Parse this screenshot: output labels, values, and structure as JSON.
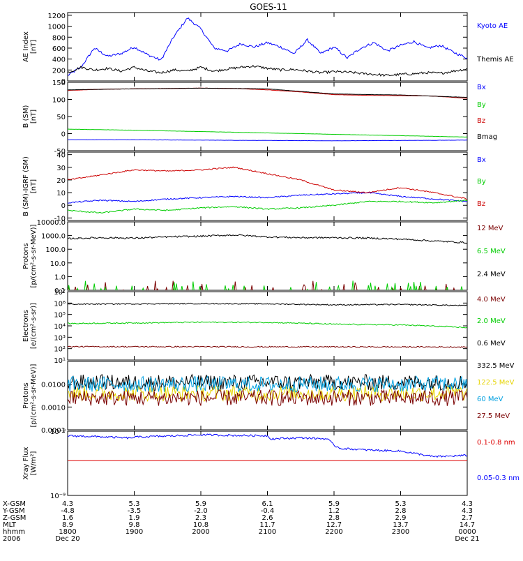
{
  "title": "GOES-11",
  "colors": {
    "black": "#000000",
    "blue": "#0000ff",
    "green": "#00cc00",
    "red": "#cc0000",
    "darkred": "#7a0000",
    "yellow": "#e6d400",
    "cyan": "#00a0e0",
    "xrayRed": "#dd0000"
  },
  "chart_data": [
    {
      "type": "line",
      "id": "ae",
      "ylabel": "AE Index\n[nT]",
      "ylim": [
        0,
        1250
      ],
      "yticks": [
        "0",
        "200",
        "400",
        "600",
        "800",
        "1000",
        "1200"
      ],
      "series": [
        {
          "name": "Kyoto AE",
          "color": "blue",
          "x": [
            0,
            0.2,
            0.4,
            0.6,
            0.8,
            1.0,
            1.2,
            1.4,
            1.6,
            1.8,
            2.0,
            2.2,
            2.4,
            2.6,
            2.8,
            3.0,
            3.2,
            3.4,
            3.6,
            3.8,
            4.0,
            4.2,
            4.4,
            4.6,
            4.8,
            5.0,
            5.2,
            5.4,
            5.6,
            5.8,
            6.0
          ],
          "values": [
            100,
            250,
            600,
            450,
            500,
            620,
            480,
            380,
            820,
            1150,
            950,
            600,
            550,
            680,
            620,
            700,
            620,
            500,
            750,
            500,
            620,
            420,
            600,
            700,
            550,
            650,
            720,
            600,
            650,
            520,
            420
          ]
        },
        {
          "name": "Themis AE",
          "color": "black",
          "x": [
            0,
            0.2,
            0.4,
            0.6,
            0.8,
            1.0,
            1.2,
            1.4,
            1.6,
            1.8,
            2.0,
            2.2,
            2.4,
            2.6,
            2.8,
            3.0,
            3.2,
            3.4,
            3.6,
            3.8,
            4.0,
            4.2,
            4.4,
            4.6,
            4.8,
            5.0,
            5.2,
            5.4,
            5.6,
            5.8,
            6.0
          ],
          "values": [
            150,
            250,
            200,
            230,
            180,
            250,
            180,
            150,
            200,
            180,
            250,
            180,
            220,
            250,
            270,
            230,
            200,
            210,
            180,
            150,
            170,
            160,
            140,
            120,
            100,
            120,
            130,
            150,
            140,
            180,
            220
          ]
        }
      ]
    },
    {
      "type": "line",
      "id": "bsm",
      "ylabel": "B (SM)\n[nT]",
      "ylim": [
        -50,
        150
      ],
      "yticks": [
        "-50",
        "0",
        "50",
        "100",
        "150"
      ],
      "series": [
        {
          "name": "Bx",
          "color": "blue",
          "x": [
            0,
            1,
            2,
            3,
            4,
            5,
            6
          ],
          "values": [
            -18,
            -18,
            -19,
            -20,
            -21,
            -20,
            -19
          ]
        },
        {
          "name": "By",
          "color": "green",
          "x": [
            0,
            1,
            2,
            3,
            4,
            5,
            6
          ],
          "values": [
            13,
            10,
            6,
            2,
            -2,
            -6,
            -10
          ]
        },
        {
          "name": "Bz",
          "color": "red",
          "x": [
            0,
            0.5,
            1,
            1.5,
            2,
            2.5,
            3,
            3.5,
            4,
            4.5,
            5,
            5.5,
            6
          ],
          "values": [
            126,
            130,
            131,
            132,
            133,
            132,
            128,
            122,
            114,
            112,
            111,
            110,
            103
          ]
        },
        {
          "name": "Bmag",
          "color": "black",
          "x": [
            0,
            1,
            2,
            3,
            4,
            5,
            6
          ],
          "values": [
            128,
            131,
            133,
            131,
            116,
            113,
            106
          ]
        }
      ]
    },
    {
      "type": "line",
      "id": "btsm",
      "ylabel": "B (SM)-IGRF (SM)\n[nT]",
      "ylim": [
        -12,
        42
      ],
      "yticks": [
        "-10",
        "0",
        "10",
        "20",
        "30",
        "40"
      ],
      "series": [
        {
          "name": "Bx",
          "color": "blue",
          "x": [
            0,
            0.5,
            1,
            1.5,
            2,
            2.5,
            3,
            3.5,
            4,
            4.5,
            5,
            5.5,
            6
          ],
          "values": [
            2,
            4,
            3,
            5,
            6,
            7,
            6,
            8,
            9,
            10,
            7,
            5,
            3
          ]
        },
        {
          "name": "By",
          "color": "green",
          "x": [
            0,
            0.5,
            1,
            1.5,
            2,
            2.5,
            3,
            3.5,
            4,
            4.5,
            5,
            5.5,
            6
          ],
          "values": [
            -4,
            -6,
            -3,
            -4,
            -2,
            -1,
            -3,
            -2,
            0,
            3,
            3,
            2,
            4
          ]
        },
        {
          "name": "Bz",
          "color": "red",
          "x": [
            0,
            0.5,
            1,
            1.5,
            2,
            2.5,
            3,
            3.5,
            4,
            4.5,
            5,
            5.5,
            6
          ],
          "values": [
            20,
            24,
            28,
            27,
            28,
            30,
            25,
            20,
            12,
            10,
            14,
            10,
            5
          ]
        }
      ]
    },
    {
      "type": "line",
      "id": "protonsLo",
      "ylabel": "Protons\n[p/(cm²-s-sr-MeV)]",
      "yscale": "log",
      "ylim": [
        0.1,
        10000
      ],
      "yticks": [
        "0.1",
        "1.0",
        "10.0",
        "100.0",
        "1000.0",
        "10000.0"
      ],
      "series": [
        {
          "name": "12 MeV",
          "color": "darkred",
          "x": [
            0,
            6
          ],
          "values": [
            0.1,
            0.1
          ]
        },
        {
          "name": "6.5 MeV",
          "color": "green",
          "x": [
            0,
            6
          ],
          "values": [
            0.1,
            0.1
          ]
        },
        {
          "name": "2.4 MeV",
          "color": "black",
          "x": [
            0,
            0.5,
            1,
            1.5,
            2,
            2.5,
            3,
            3.5,
            4,
            4.5,
            5,
            5.5,
            6
          ],
          "values": [
            600,
            700,
            650,
            800,
            900,
            1100,
            800,
            700,
            700,
            650,
            550,
            400,
            300
          ]
        }
      ]
    },
    {
      "type": "line",
      "id": "electrons",
      "ylabel": "Electrons\n[e/(cm²-s-sr)]",
      "yscale": "log",
      "ylim": [
        10,
        10000000
      ],
      "yticks": [
        "10¹",
        "10²",
        "10³",
        "10⁴",
        "10⁵",
        "10⁶",
        "10⁷"
      ],
      "series": [
        {
          "name": "4.0 MeV",
          "color": "darkred",
          "x": [
            0,
            6
          ],
          "values": [
            150,
            140
          ]
        },
        {
          "name": "2.0 MeV",
          "color": "green",
          "x": [
            0,
            1,
            2,
            3,
            4,
            5,
            6
          ],
          "values": [
            16000,
            18000,
            21000,
            20000,
            14000,
            12000,
            7000
          ]
        },
        {
          "name": "0.6 MeV",
          "color": "black",
          "x": [
            0,
            1,
            2,
            3,
            4,
            5,
            6
          ],
          "values": [
            800000,
            850000,
            900000,
            850000,
            700000,
            750000,
            600000
          ]
        }
      ]
    },
    {
      "type": "line",
      "id": "protonsHi",
      "ylabel": "Protons\n[p/(cm²-s-sr-MeV)]",
      "yscale": "log",
      "ylim": [
        0.0001,
        0.1
      ],
      "yticks": [
        "0.0001",
        "0.0010",
        "0.0100"
      ],
      "series": [
        {
          "name": "332.5 MeV",
          "color": "black",
          "x": [
            0,
            6
          ],
          "values": [
            0.012,
            0.012
          ]
        },
        {
          "name": "122.5 MeV",
          "color": "yellow",
          "x": [
            0,
            6
          ],
          "values": [
            0.004,
            0.004
          ]
        },
        {
          "name": "60 MeV",
          "color": "cyan",
          "x": [
            0,
            6
          ],
          "values": [
            0.01,
            0.01
          ]
        },
        {
          "name": "27.5 MeV",
          "color": "darkred",
          "x": [
            0,
            6
          ],
          "values": [
            0.0025,
            0.0025
          ]
        }
      ]
    },
    {
      "type": "line",
      "id": "xray",
      "ylabel": "Xray Flux\n[W/m²]",
      "yscale": "log",
      "ylim": [
        1e-09,
        1e-08
      ],
      "yticks": [
        "10⁻⁹",
        "10⁻⁸"
      ],
      "series": [
        {
          "name": "0.1-0.8 nm",
          "color": "xrayRed",
          "x": [
            0,
            6
          ],
          "values": [
            3.5e-09,
            3.5e-09
          ]
        },
        {
          "name": "0.05-0.3 nm",
          "color": "blue",
          "x": [
            0,
            0.5,
            0.95,
            1.0,
            1.5,
            2.0,
            2.5,
            3.0,
            3.05,
            3.5,
            3.9,
            4.0,
            4.1,
            4.5,
            5.0,
            5.5,
            6.0
          ],
          "values": [
            8.5e-09,
            8.2e-09,
            7.8e-09,
            8.1e-09,
            8.4e-09,
            8.8e-09,
            8.6e-09,
            8.5e-09,
            7.6e-09,
            7.9e-09,
            7.6e-09,
            6e-09,
            5.4e-09,
            5.1e-09,
            4.9e-09,
            4e-09,
            4.2e-09
          ]
        }
      ]
    }
  ],
  "axis_table": {
    "row_labels": [
      "X-GSM",
      "Y-GSM",
      "Z-GSM",
      "MLT",
      "hhmm",
      "2006"
    ],
    "columns": [
      [
        "4.3",
        "-4.8",
        "1.6",
        "8.9",
        "1800",
        "Dec 20"
      ],
      [
        "5.3",
        "-3.5",
        "1.9",
        "9.8",
        "1900",
        ""
      ],
      [
        "5.9",
        "-2.0",
        "2.3",
        "10.8",
        "2000",
        ""
      ],
      [
        "6.1",
        "-0.4",
        "2.6",
        "11.7",
        "2100",
        ""
      ],
      [
        "5.9",
        "1.2",
        "2.8",
        "12.7",
        "2200",
        ""
      ],
      [
        "5.3",
        "2.8",
        "2.9",
        "13.7",
        "2300",
        ""
      ],
      [
        "4.3",
        "4.3",
        "2.7",
        "14.7",
        "0000",
        "Dec 21"
      ]
    ]
  }
}
